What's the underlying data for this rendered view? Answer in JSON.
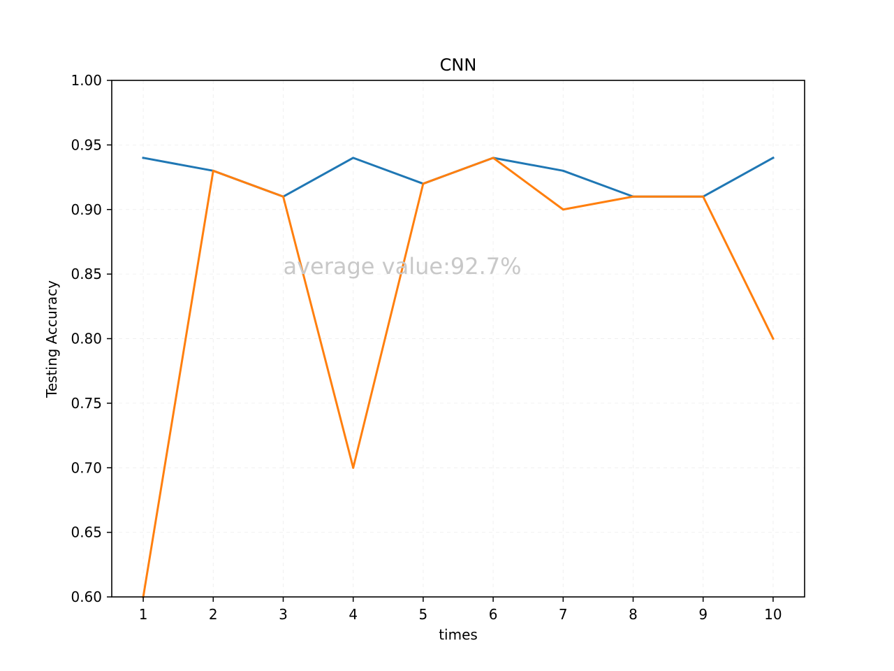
{
  "chart_data": {
    "type": "line",
    "title": "CNN",
    "xlabel": "times",
    "ylabel": "Testing Accuracy",
    "x": [
      1,
      2,
      3,
      4,
      5,
      6,
      7,
      8,
      9,
      10
    ],
    "xticks": [
      "1",
      "2",
      "3",
      "4",
      "5",
      "6",
      "7",
      "8",
      "9",
      "10"
    ],
    "xlim": [
      0.55,
      10.45
    ],
    "ylim": [
      0.6,
      1.0
    ],
    "yticks": [
      "0.60",
      "0.65",
      "0.70",
      "0.75",
      "0.80",
      "0.85",
      "0.90",
      "0.95",
      "1.00"
    ],
    "grid": true,
    "series": [
      {
        "color": "#1f77b4",
        "values": [
          0.94,
          0.93,
          0.91,
          0.94,
          0.92,
          0.94,
          0.93,
          0.91,
          0.91,
          0.94
        ]
      },
      {
        "color": "#ff7f0e",
        "values": [
          0.6,
          0.93,
          0.91,
          0.7,
          0.92,
          0.94,
          0.9,
          0.91,
          0.91,
          0.8
        ]
      }
    ],
    "annotations": [
      {
        "text": "average value:92.7%",
        "x": 3.0,
        "y": 0.85
      }
    ]
  }
}
